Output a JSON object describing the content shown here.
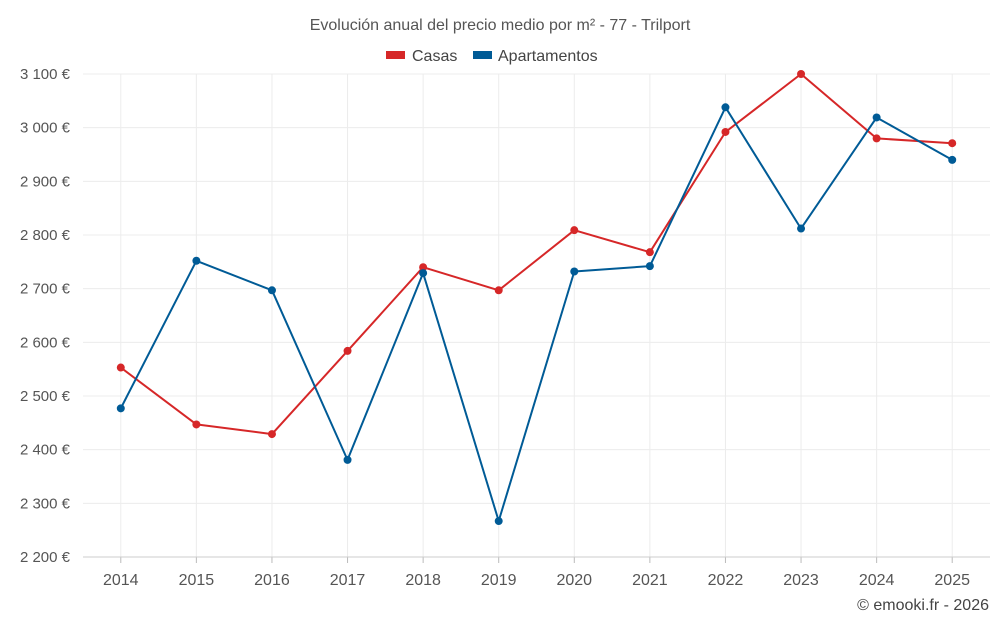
{
  "chart_data": {
    "type": "line",
    "title": "Evolución anual del precio medio por m² - 77 - Trilport",
    "categories": [
      "2014",
      "2015",
      "2016",
      "2017",
      "2018",
      "2019",
      "2020",
      "2021",
      "2022",
      "2023",
      "2024",
      "2025"
    ],
    "series": [
      {
        "name": "Casas",
        "color": "#d62728",
        "values": [
          2553,
          2447,
          2429,
          2584,
          2740,
          2697,
          2809,
          2768,
          2992,
          3100,
          2980,
          2971
        ]
      },
      {
        "name": "Apartamentos",
        "color": "#005b96",
        "values": [
          2477,
          2752,
          2697,
          2381,
          2729,
          2267,
          2732,
          2742,
          3038,
          2812,
          3019,
          2940
        ]
      }
    ],
    "ylim": [
      2200,
      3100
    ],
    "yticks": [
      2200,
      2300,
      2400,
      2500,
      2600,
      2700,
      2800,
      2900,
      3000,
      3100
    ],
    "ytick_labels": [
      "2 200 €",
      "2 300 €",
      "2 400 €",
      "2 500 €",
      "2 600 €",
      "2 700 €",
      "2 800 €",
      "2 900 €",
      "3 000 €",
      "3 100 €"
    ],
    "xlabel": "",
    "ylabel": "",
    "grid": true,
    "legend_position": "top-center"
  },
  "credit": "© emooki.fr - 2026"
}
